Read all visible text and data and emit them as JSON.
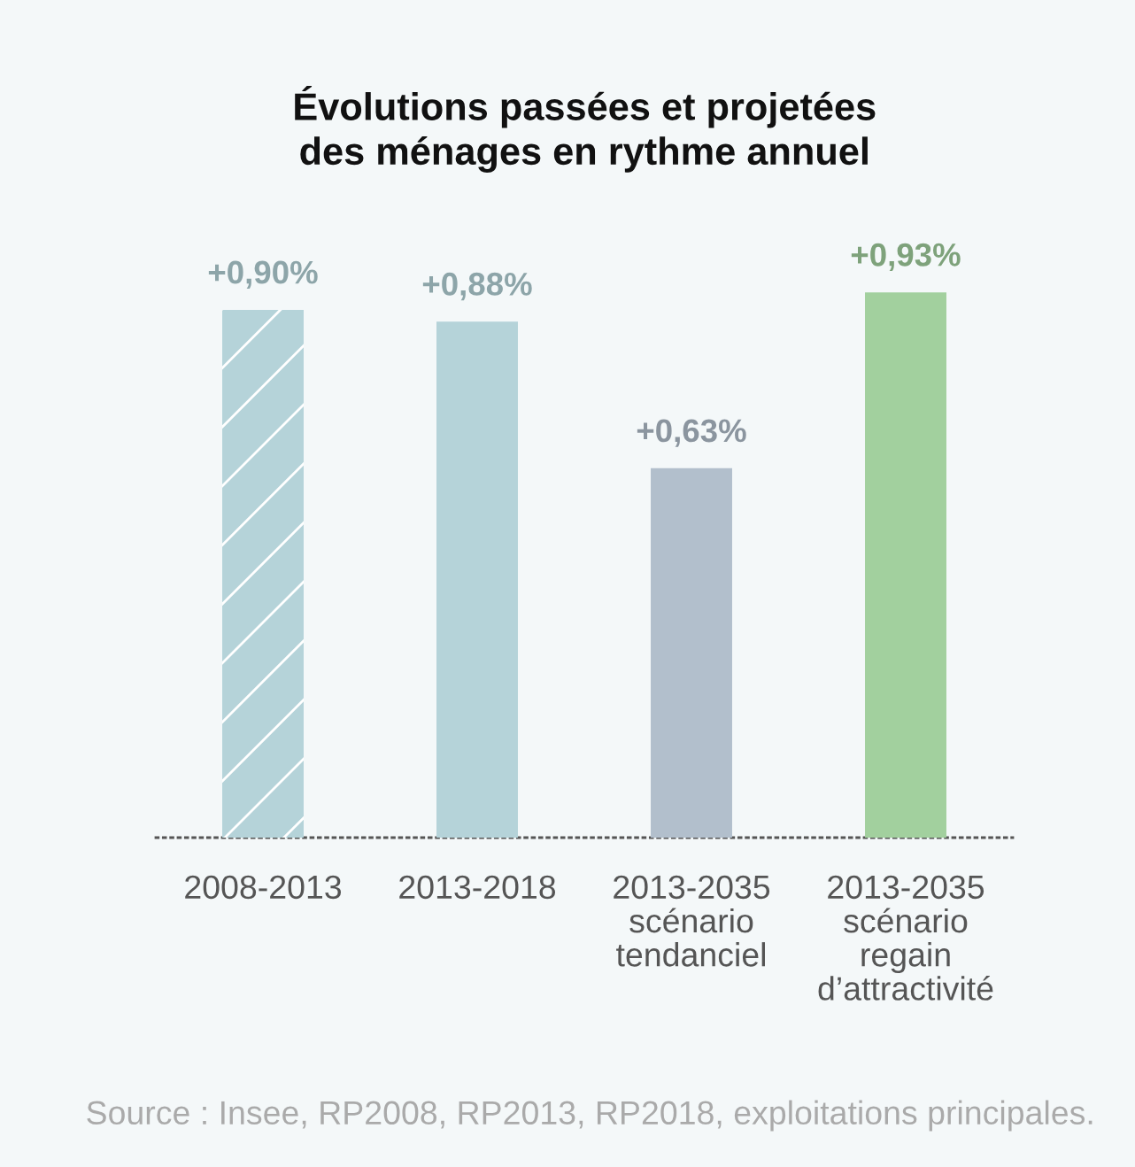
{
  "chart_data": {
    "type": "bar",
    "title": "Évolutions passées et projetées\ndes ménages en rythme annuel",
    "categories": [
      "2008-2013",
      "2013-2018",
      "2013-2035\nscénario\ntendanciel",
      "2013-2035\nscénario\nregain\nd’attractivité"
    ],
    "values": [
      0.9,
      0.88,
      0.63,
      0.93
    ],
    "colors": [
      "#b5d3d9",
      "#b5d3d9",
      "#b2bfcc",
      "#a2d09e"
    ],
    "value_labels": [
      "+0,90%",
      "+0,88%",
      "+0,63%",
      "+0,93%"
    ],
    "tick_labels": "x",
    "annotations": [
      "Source : Insee, RP2008, RP2013, RP2018, exploitations principales."
    ]
  }
}
